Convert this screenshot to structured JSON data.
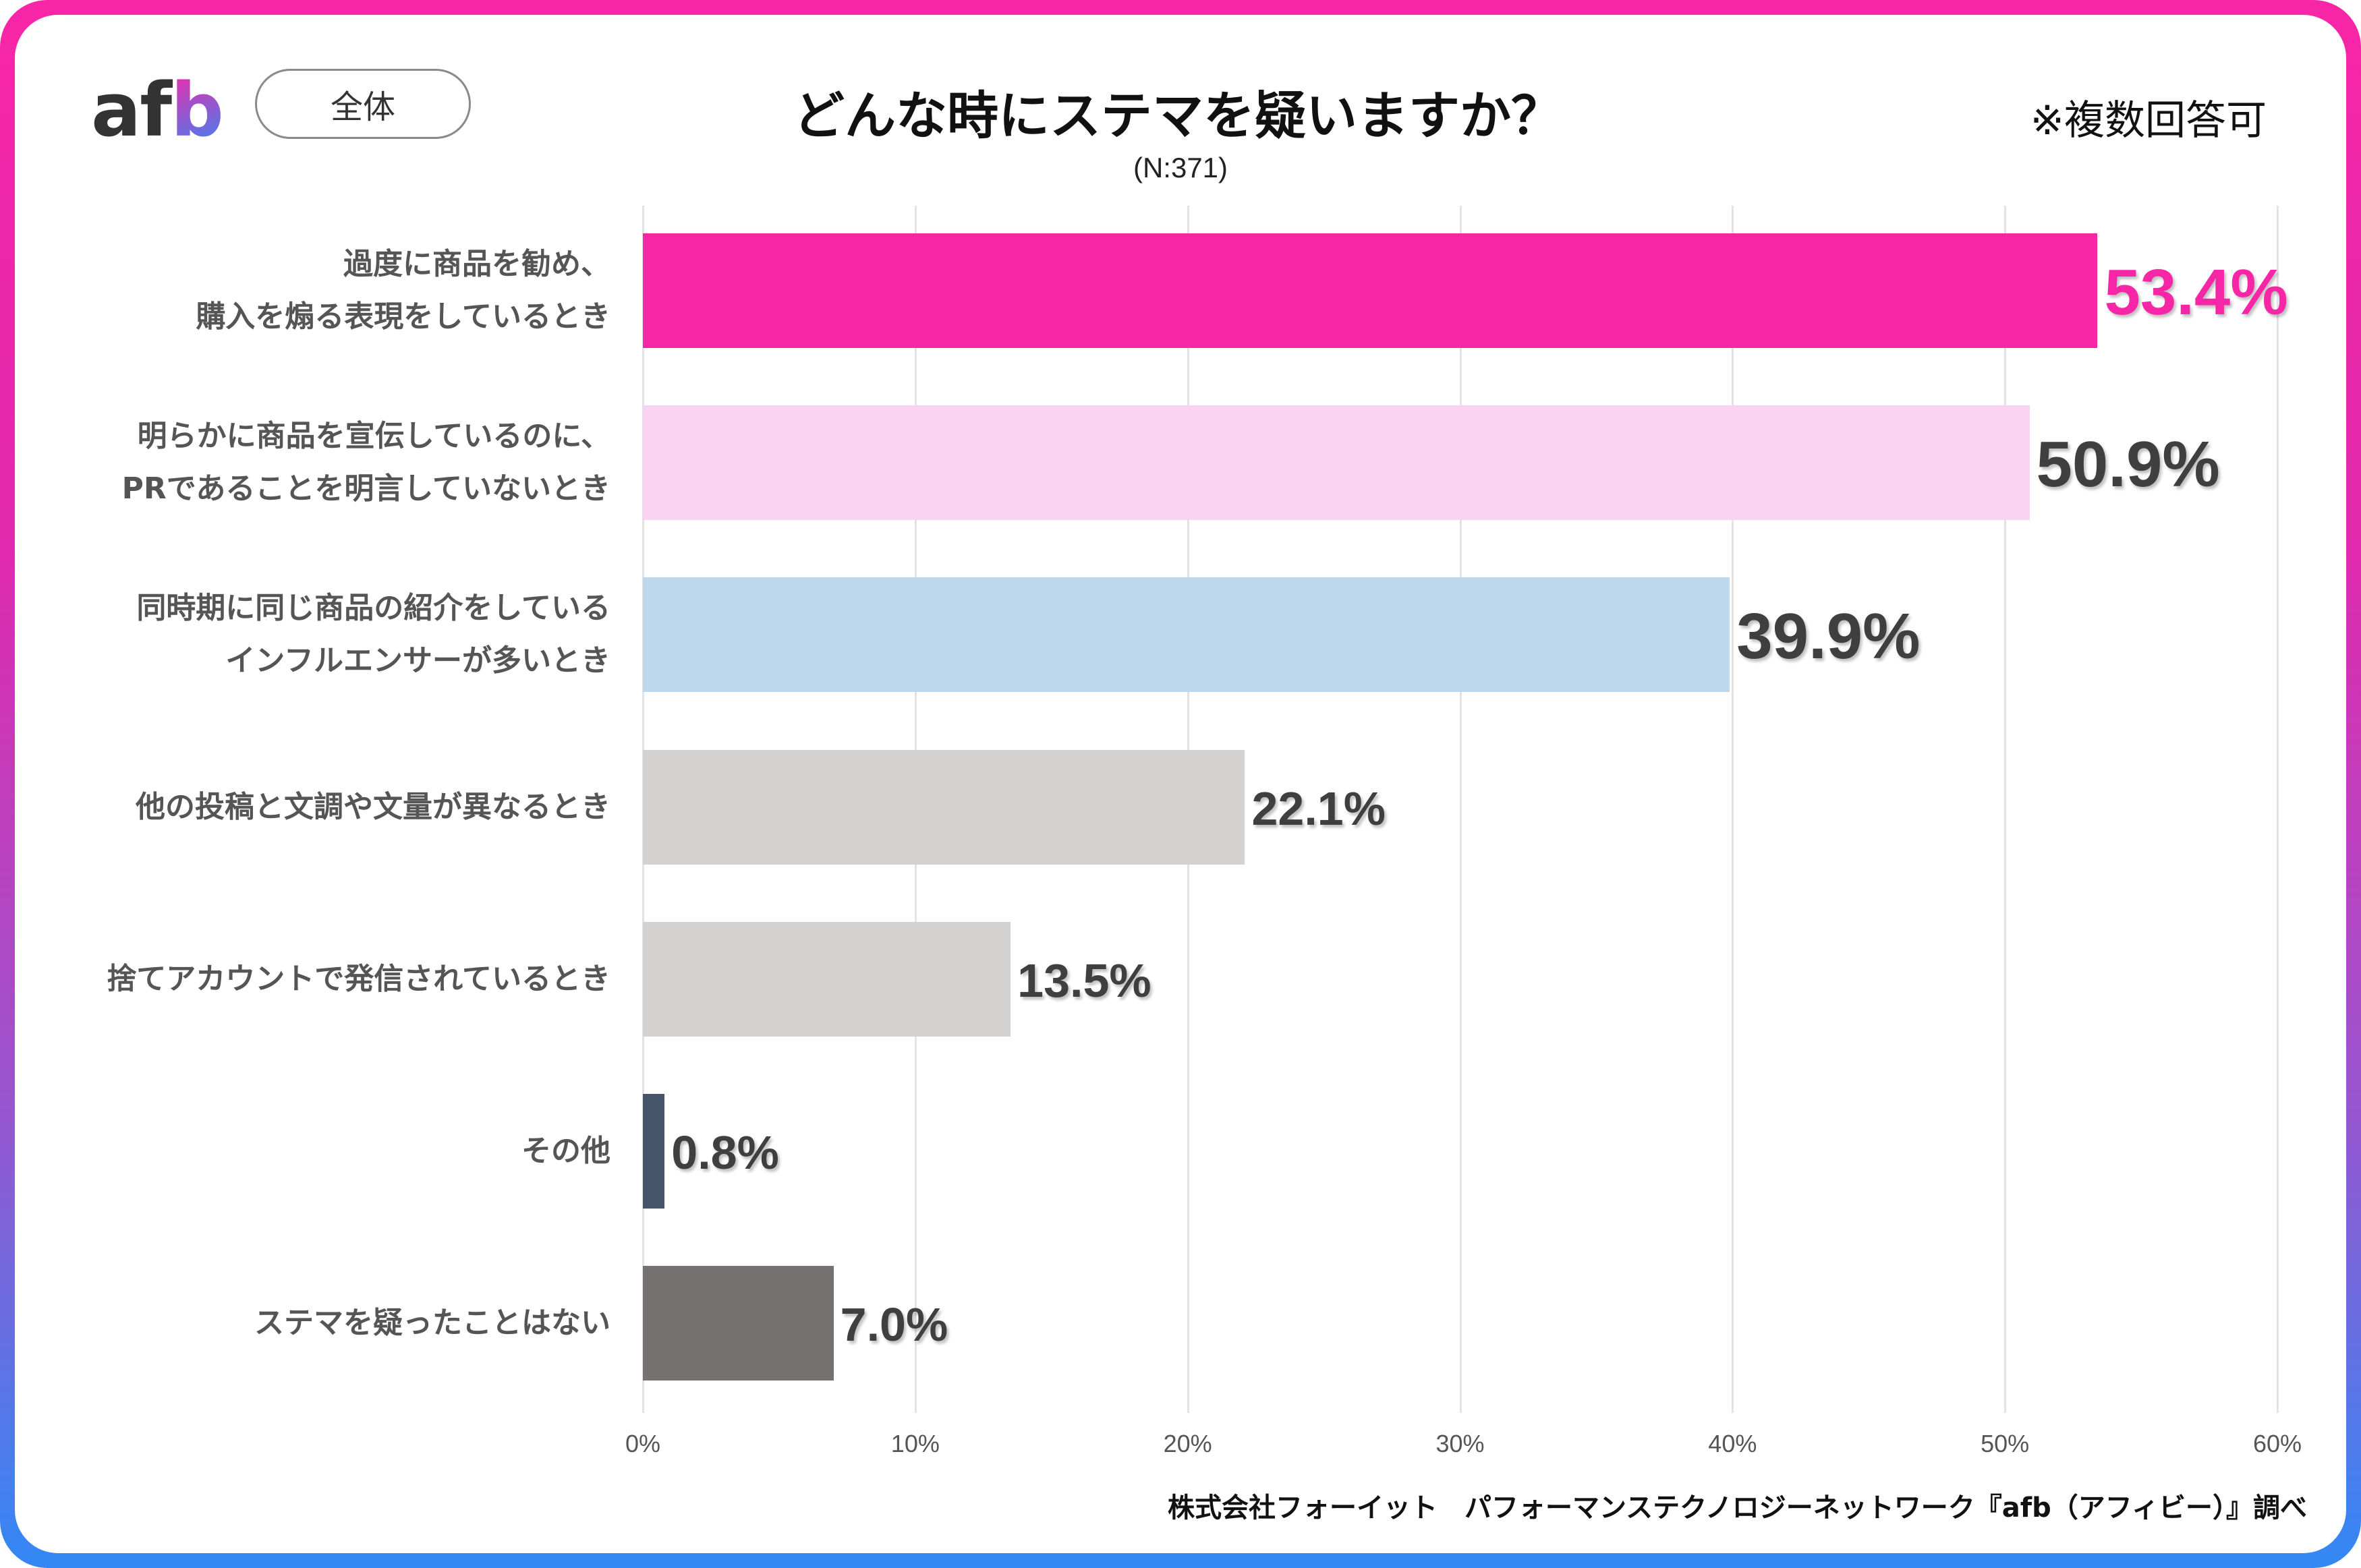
{
  "header": {
    "logo_text_a": "af",
    "logo_text_b": "b",
    "segment_label": "全体",
    "note": "※複数回答可"
  },
  "colors": {
    "border_top": "#f726a6",
    "border_bottom": "#3388f5",
    "highlight": "#f726a6",
    "value_text": "#3f3f3f"
  },
  "chart_data": {
    "type": "bar",
    "orientation": "horizontal",
    "title": "どんな時にステマを疑いますか？",
    "subtitle": "(N:371)",
    "xlabel": "",
    "ylabel": "",
    "xlim": [
      0,
      60
    ],
    "grid": true,
    "x_ticks": [
      "0%",
      "10%",
      "20%",
      "30%",
      "40%",
      "50%",
      "60%"
    ],
    "x_tick_values": [
      0,
      10,
      20,
      30,
      40,
      50,
      60
    ],
    "categories": [
      [
        "過度に商品を勧め、",
        "購入を煽る表現をしているとき"
      ],
      [
        "明らかに商品を宣伝しているのに、",
        "PRであることを明言していないとき"
      ],
      [
        "同時期に同じ商品の紹介をしている",
        "インフルエンサーが多いとき"
      ],
      [
        "他の投稿と文調や文量が異なるとき"
      ],
      [
        "捨てアカウントで発信されているとき"
      ],
      [
        "その他"
      ],
      [
        "ステマを疑ったことはない"
      ]
    ],
    "values": [
      53.4,
      50.9,
      39.9,
      22.1,
      13.5,
      0.8,
      7.0
    ],
    "labels": [
      "53.4%",
      "50.9%",
      "39.9%",
      "22.1%",
      "13.5%",
      "0.8%",
      "7.0%"
    ],
    "bar_colors": [
      "#f726a6",
      "#fad3f2",
      "#bdd7ed",
      "#d4d1d1",
      "#d4d1d1",
      "#44546a",
      "#767171"
    ],
    "label_colors": [
      "#f726a6",
      "#3f3f3f",
      "#3f3f3f",
      "#3f3f3f",
      "#3f3f3f",
      "#3f3f3f",
      "#3f3f3f"
    ]
  },
  "footer": {
    "source": "株式会社フォーイット　パフォーマンステクノロジーネットワーク『afb（アフィビー）』調べ"
  }
}
